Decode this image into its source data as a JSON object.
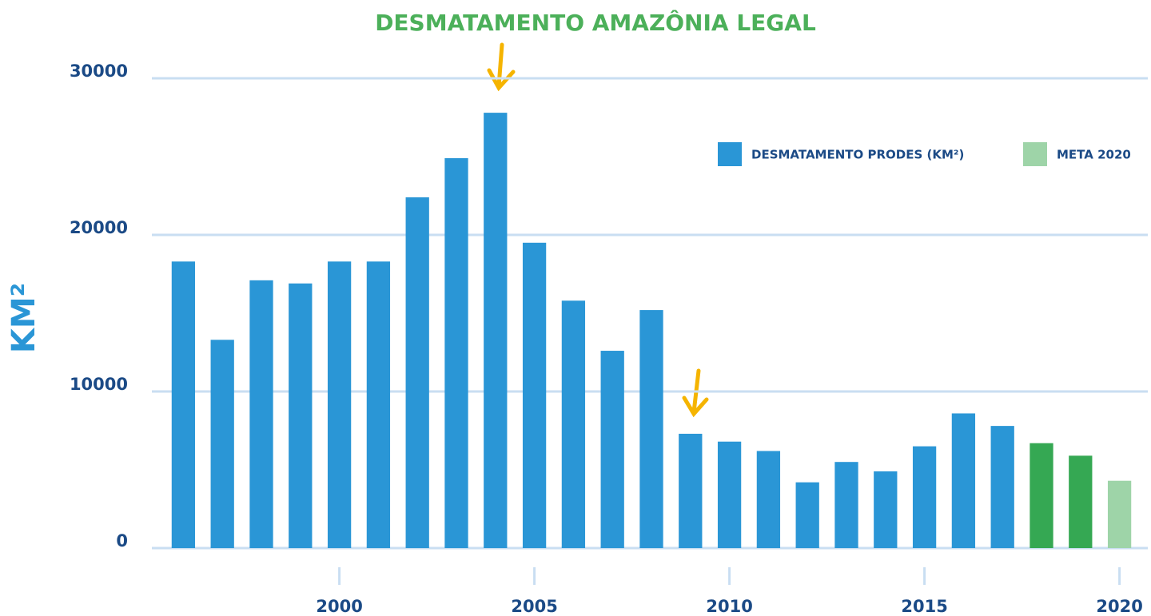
{
  "chart_data": {
    "type": "bar",
    "title": "DESMATAMENTO AMAZÔNIA LEGAL",
    "y_label": "KM²",
    "x": [
      1996,
      1997,
      1998,
      1999,
      2000,
      2001,
      2002,
      2003,
      2004,
      2005,
      2006,
      2007,
      2008,
      2009,
      2010,
      2011,
      2012,
      2013,
      2014,
      2015,
      2016,
      2017,
      2018,
      2019,
      2020
    ],
    "series": [
      {
        "name": "DESMATAMENTO PRODES (KM²)",
        "color": "#2a96d6",
        "point_colors": [
          "#2a96d6",
          "#2a96d6",
          "#2a96d6",
          "#2a96d6",
          "#2a96d6",
          "#2a96d6",
          "#2a96d6",
          "#2a96d6",
          "#2a96d6",
          "#2a96d6",
          "#2a96d6",
          "#2a96d6",
          "#2a96d6",
          "#2a96d6",
          "#2a96d6",
          "#2a96d6",
          "#2a96d6",
          "#2a96d6",
          "#2a96d6",
          "#2a96d6",
          "#2a96d6",
          "#2a96d6",
          "#35a853",
          "#35a853",
          null
        ],
        "values": [
          18300,
          13300,
          17100,
          16900,
          18300,
          18300,
          22400,
          24900,
          27800,
          19500,
          15800,
          12600,
          15200,
          7300,
          6800,
          6200,
          4200,
          5500,
          4900,
          6500,
          8600,
          7800,
          6700,
          5900,
          null
        ]
      },
      {
        "name": "META 2020",
        "color": "#9ed4a8",
        "values": [
          null,
          null,
          null,
          null,
          null,
          null,
          null,
          null,
          null,
          null,
          null,
          null,
          null,
          null,
          null,
          null,
          null,
          null,
          null,
          null,
          null,
          null,
          null,
          null,
          4300
        ]
      }
    ],
    "xlim": [
      1995.5,
      2020.5
    ],
    "xticks": [
      2000,
      2005,
      2010,
      2015,
      2020
    ],
    "ylim": [
      0,
      30000
    ],
    "yticks": [
      0,
      10000,
      20000,
      30000
    ],
    "grid": true,
    "legend": "top-right"
  }
}
